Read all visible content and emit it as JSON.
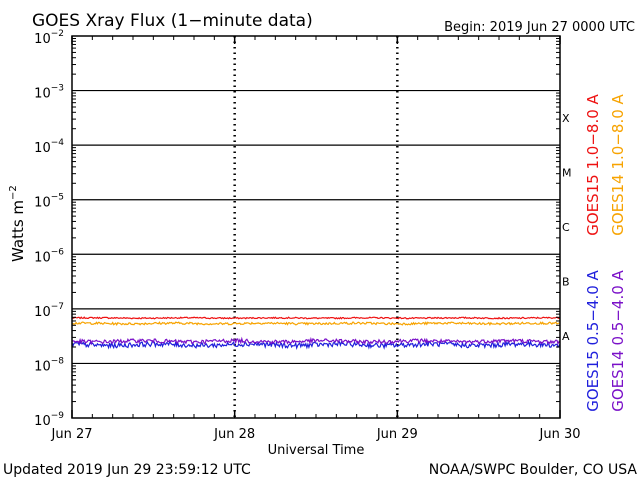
{
  "chart_data": {
    "type": "line",
    "title": "GOES Xray Flux (1−minute data)",
    "begin_label": "Begin:  2019 Jun 27 0000 UTC",
    "xlabel": "Universal Time",
    "ylabel_base": "Watts m",
    "ylabel_exp": "−2",
    "yscale": "log",
    "ylim_exp": [
      -9,
      -2
    ],
    "y_ticks": [
      {
        "exp": -9,
        "base": "10",
        "sup": "−9"
      },
      {
        "exp": -8,
        "base": "10",
        "sup": "−8"
      },
      {
        "exp": -7,
        "base": "10",
        "sup": "−7"
      },
      {
        "exp": -6,
        "base": "10",
        "sup": "−6"
      },
      {
        "exp": -5,
        "base": "10",
        "sup": "−5"
      },
      {
        "exp": -4,
        "base": "10",
        "sup": "−4"
      },
      {
        "exp": -3,
        "base": "10",
        "sup": "−3"
      },
      {
        "exp": -2,
        "base": "10",
        "sup": "−2"
      }
    ],
    "x_ticks": [
      "Jun 27",
      "Jun 28",
      "Jun 29",
      "Jun 30"
    ],
    "xlim_days": [
      0,
      3
    ],
    "flare_classes": [
      {
        "label": "A",
        "exp": -8
      },
      {
        "label": "B",
        "exp": -7
      },
      {
        "label": "C",
        "exp": -6
      },
      {
        "label": "M",
        "exp": -5
      },
      {
        "label": "X",
        "exp": -4
      }
    ],
    "series": [
      {
        "name": "GOES15 1.0−8.0 A",
        "color": "#ee1111",
        "level": 6.8e-08,
        "noise": 0.012
      },
      {
        "name": "GOES14 1.0−8.0 A",
        "color": "#f7a300",
        "level": 5.4e-08,
        "noise": 0.02
      },
      {
        "name": "GOES15 0.5−4.0 A",
        "color": "#1f1fdc",
        "level": 2.2e-08,
        "noise": 0.045
      },
      {
        "name": "GOES14 0.5−4.0 A",
        "color": "#7a10c8",
        "level": 2.55e-08,
        "noise": 0.035
      }
    ]
  },
  "footer": {
    "updated": "Updated 2019 Jun 29 23:59:12 UTC",
    "credit": "NOAA/SWPC Boulder, CO USA"
  }
}
